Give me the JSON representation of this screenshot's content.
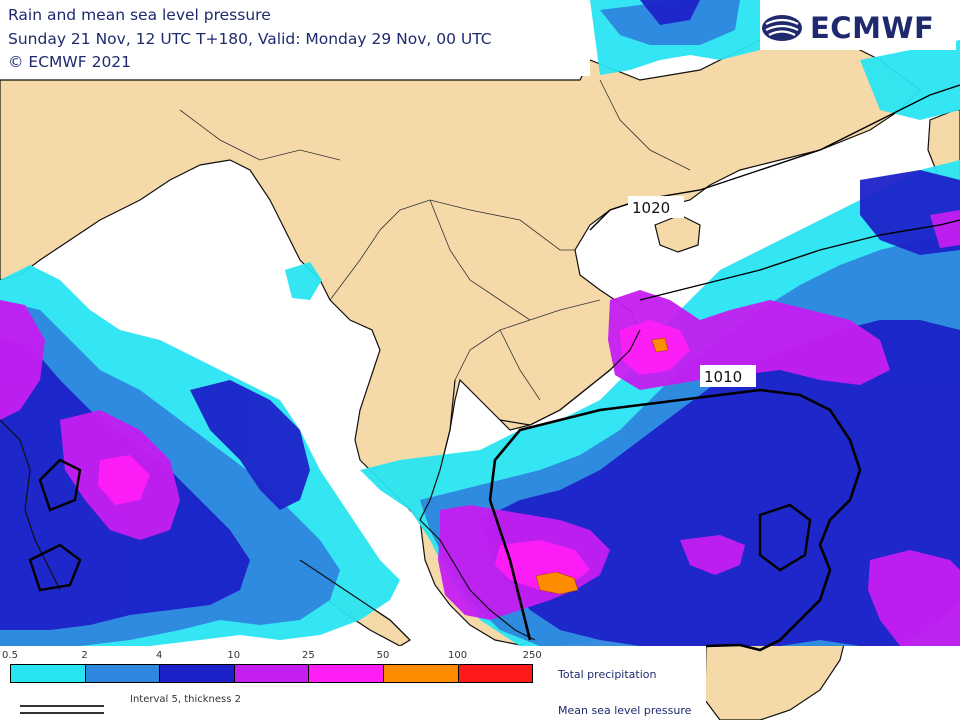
{
  "header": {
    "title": "Rain and mean sea level pressure",
    "subtitle": "Sunday 21 Nov, 12 UTC T+180, Valid: Monday 29 Nov, 00 UTC",
    "copyright": "© ECMWF 2021"
  },
  "logo": {
    "text": "ECMWF"
  },
  "isobars": [
    {
      "label": "1020"
    },
    {
      "label": "1010"
    }
  ],
  "legend": {
    "ticks": [
      "0.5",
      "2",
      "4",
      "10",
      "25",
      "50",
      "100",
      "250"
    ],
    "classes": [
      {
        "range": "0.5-2",
        "color": "#29e5f2"
      },
      {
        "range": "2-4",
        "color": "#2e86de"
      },
      {
        "range": "4-10",
        "color": "#1c22c8"
      },
      {
        "range": "10-25",
        "color": "#c51ef0"
      },
      {
        "range": "25-50",
        "color": "#ff1ef5"
      },
      {
        "range": "50-100",
        "color": "#ff8c00"
      },
      {
        "range": "100-250",
        "color": "#ff1a1a"
      }
    ],
    "interval_note": "Interval 5, thickness 2",
    "total_precip_label": "Total precipitation",
    "mslp_label": "Mean sea level pressure"
  },
  "colors": {
    "land": "#f6d9a8",
    "sea": "#ffffff",
    "text": "#1f2a6e"
  }
}
